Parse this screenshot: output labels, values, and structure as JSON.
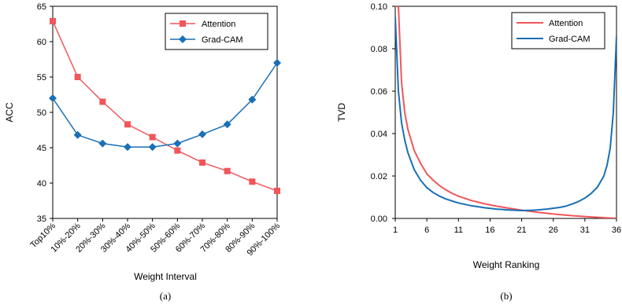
{
  "chart_data": [
    {
      "type": "line",
      "caption": "(a)",
      "xlabel": "Weight Interval",
      "ylabel": "ACC",
      "ylim": [
        35,
        65
      ],
      "yticks": [
        35,
        40,
        45,
        50,
        55,
        60,
        65
      ],
      "categories": [
        "Top10%",
        "10%-20%",
        "20%-30%",
        "30%-40%",
        "40%-50%",
        "50%-60%",
        "60%-70%",
        "70%-80%",
        "80%-90%",
        "90%-100%"
      ],
      "legend_position": "top-right",
      "series": [
        {
          "name": "Attention",
          "color": "#f0565a",
          "marker": "square",
          "values": [
            62.9,
            55.0,
            51.5,
            48.3,
            46.5,
            44.6,
            42.9,
            41.7,
            40.2,
            38.9
          ]
        },
        {
          "name": "Grad-CAM",
          "color": "#1a6fb5",
          "marker": "diamond",
          "values": [
            52.0,
            46.8,
            45.6,
            45.1,
            45.1,
            45.6,
            46.9,
            48.3,
            51.8,
            57.0
          ]
        }
      ]
    },
    {
      "type": "line",
      "caption": "(b)",
      "xlabel": "Weight Ranking",
      "ylabel": "TVD",
      "xlim": [
        1,
        36
      ],
      "ylim": [
        0,
        0.1
      ],
      "xticks": [
        "1",
        "6",
        "11",
        "16",
        "21",
        "26",
        "31",
        "36"
      ],
      "yticks": [
        "0.00",
        "0.02",
        "0.04",
        "0.06",
        "0.08",
        "0.10"
      ],
      "legend_position": "top-right",
      "series": [
        {
          "name": "Attention",
          "color": "#f0565a",
          "x": [
            1,
            1.5,
            2,
            2.5,
            3,
            4,
            5,
            6,
            7,
            8,
            9,
            10,
            11,
            13,
            15,
            17,
            19,
            21,
            23,
            25,
            27,
            29,
            31,
            33,
            35,
            36
          ],
          "y": [
            0.1,
            0.1,
            0.064,
            0.05,
            0.042,
            0.032,
            0.026,
            0.021,
            0.018,
            0.0155,
            0.0135,
            0.0118,
            0.0105,
            0.0085,
            0.007,
            0.0058,
            0.0048,
            0.0039,
            0.0031,
            0.0024,
            0.0018,
            0.0013,
            0.0009,
            0.0005,
            0.0002,
            0.0001
          ]
        },
        {
          "name": "Grad-CAM",
          "color": "#1a6fb5",
          "x": [
            1,
            1.5,
            2,
            2.5,
            3,
            4,
            5,
            6,
            7,
            8,
            9,
            10,
            11,
            13,
            15,
            17,
            19,
            21,
            23,
            25,
            27,
            28,
            29,
            30,
            31,
            32,
            33,
            34,
            34.5,
            35,
            35.5,
            36
          ],
          "y": [
            0.095,
            0.06,
            0.045,
            0.037,
            0.031,
            0.023,
            0.018,
            0.0145,
            0.0122,
            0.0105,
            0.0092,
            0.0082,
            0.0073,
            0.006,
            0.0051,
            0.0044,
            0.004,
            0.0037,
            0.0039,
            0.0044,
            0.0052,
            0.0058,
            0.0068,
            0.008,
            0.0096,
            0.0118,
            0.0148,
            0.02,
            0.025,
            0.033,
            0.05,
            0.086
          ]
        }
      ]
    }
  ]
}
